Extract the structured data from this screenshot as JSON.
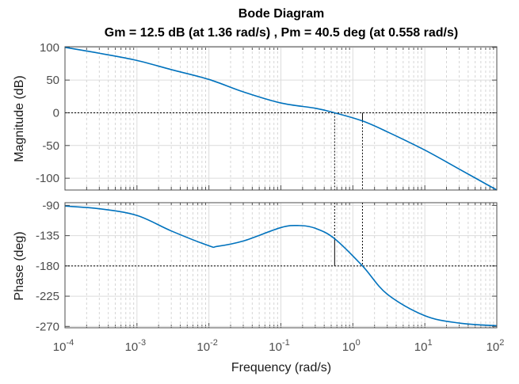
{
  "chart_data": {
    "type": "line",
    "title": "Bode Diagram",
    "subtitle": "Gm = 12.5 dB (at 1.36 rad/s) ,  Pm = 40.5 deg (at 0.558 rad/s)",
    "xlabel": "Frequency  (rad/s)",
    "xscale": "log",
    "xlim": [
      0.0001,
      100
    ],
    "x_ticks": [
      {
        "base": "10",
        "exp": "-4",
        "value": 0.0001
      },
      {
        "base": "10",
        "exp": "-3",
        "value": 0.001
      },
      {
        "base": "10",
        "exp": "-2",
        "value": 0.01
      },
      {
        "base": "10",
        "exp": "-1",
        "value": 0.1
      },
      {
        "base": "10",
        "exp": "0",
        "value": 1
      },
      {
        "base": "10",
        "exp": "1",
        "value": 10
      },
      {
        "base": "10",
        "exp": "2",
        "value": 100
      }
    ],
    "grid": true,
    "line_color": "#0072BD",
    "gain_margin": {
      "value_db": 12.5,
      "freq": 1.36
    },
    "phase_margin": {
      "value_deg": 40.5,
      "freq": 0.558
    },
    "panels": [
      {
        "name": "magnitude",
        "ylabel": "Magnitude (dB)",
        "ylim": [
          -118,
          101
        ],
        "yticks": [
          "100",
          "50",
          "0",
          "-50",
          "-100"
        ],
        "ytick_values": [
          100,
          50,
          0,
          -50,
          -100
        ],
        "reference": 0,
        "x": [
          0.0001,
          0.0003,
          0.001,
          0.003,
          0.01,
          0.03,
          0.1,
          0.3,
          0.558,
          1.36,
          3,
          10,
          30,
          100
        ],
        "y": [
          100,
          91,
          80,
          66,
          51,
          32,
          15,
          7,
          0,
          -12.5,
          -29,
          -57,
          -86,
          -118
        ]
      },
      {
        "name": "phase",
        "ylabel": "Phase (deg)",
        "ylim": [
          -272,
          -86
        ],
        "yticks": [
          "-90",
          "-135",
          "-180",
          "-225",
          "-270"
        ],
        "ytick_values": [
          -90,
          -135,
          -180,
          -225,
          -270
        ],
        "reference": -180,
        "x": [
          0.0001,
          0.0003,
          0.001,
          0.003,
          0.01,
          0.013,
          0.03,
          0.1,
          0.18,
          0.3,
          0.558,
          1.36,
          3,
          10,
          30,
          100
        ],
        "y": [
          -91,
          -95,
          -105,
          -128,
          -150,
          -151,
          -143,
          -123,
          -120,
          -124,
          -139.5,
          -180,
          -222,
          -254,
          -265,
          -269
        ]
      }
    ]
  }
}
